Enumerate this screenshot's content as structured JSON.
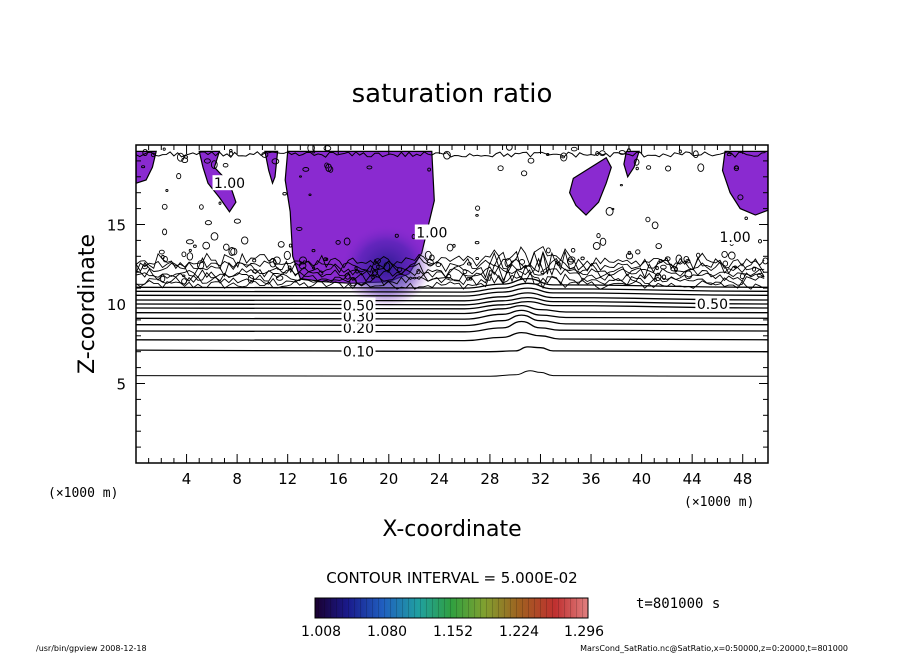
{
  "chart_data": {
    "type": "contour",
    "title": "saturation ratio",
    "xlabel": "X-coordinate",
    "ylabel": "Z-coordinate",
    "x_unit_label": "(×1000 m)",
    "y_unit_label": "(×1000 m)",
    "xlim": [
      0,
      50
    ],
    "ylim": [
      0,
      20
    ],
    "x_ticks": [
      4,
      8,
      12,
      16,
      20,
      24,
      28,
      32,
      36,
      40,
      44,
      48
    ],
    "y_ticks": [
      5,
      10,
      15
    ],
    "contour_interval_text": "CONTOUR INTERVAL = 5.000E-02",
    "time_text": "t=801000 s",
    "colorbar": {
      "labels": [
        "1.008",
        "1.080",
        "1.152",
        "1.224",
        "1.296"
      ],
      "colors": [
        "#1a0030",
        "#1a1a8c",
        "#2060c0",
        "#20a0a0",
        "#30a040",
        "#80a030",
        "#a06020",
        "#c03030",
        "#e08080"
      ]
    },
    "shaded_color": "#8a2ad0",
    "shaded_dark_color": "#3a1a9a",
    "contour_labels": [
      {
        "text": "0.10",
        "x": 17.6,
        "y": 7.0
      },
      {
        "text": "0.20",
        "x": 17.6,
        "y": 8.5
      },
      {
        "text": "0.30",
        "x": 17.6,
        "y": 9.2
      },
      {
        "text": "0.50",
        "x": 17.6,
        "y": 9.9
      },
      {
        "text": "0.50",
        "x": 45.6,
        "y": 10.0
      },
      {
        "text": "1.00",
        "x": 7.4,
        "y": 17.6
      },
      {
        "text": "1.00",
        "x": 23.4,
        "y": 14.5
      },
      {
        "text": "1.00",
        "x": 47.4,
        "y": 14.2
      }
    ],
    "contour_lines": [
      {
        "level": 0.05,
        "points": [
          [
            0,
            5.5
          ],
          [
            28,
            5.45
          ],
          [
            30,
            5.55
          ],
          [
            31.2,
            5.8
          ],
          [
            32,
            5.7
          ],
          [
            33,
            5.5
          ],
          [
            50,
            5.45
          ]
        ]
      },
      {
        "level": 0.1,
        "points": [
          [
            0,
            7.1
          ],
          [
            28,
            7.0
          ],
          [
            30,
            7.05
          ],
          [
            31,
            7.3
          ],
          [
            32,
            7.25
          ],
          [
            33,
            7.05
          ],
          [
            50,
            7.0
          ]
        ]
      },
      {
        "level": 0.15,
        "points": [
          [
            0,
            7.75
          ],
          [
            26,
            7.7
          ],
          [
            29,
            7.9
          ],
          [
            30.5,
            8.2
          ],
          [
            32,
            8.0
          ],
          [
            33.5,
            7.8
          ],
          [
            50,
            7.75
          ]
        ]
      },
      {
        "level": 0.2,
        "points": [
          [
            0,
            8.3
          ],
          [
            26,
            8.25
          ],
          [
            29,
            8.5
          ],
          [
            30.5,
            8.9
          ],
          [
            32,
            8.5
          ],
          [
            33.5,
            8.35
          ],
          [
            50,
            8.3
          ]
        ]
      },
      {
        "level": 0.25,
        "points": [
          [
            0,
            8.7
          ],
          [
            26,
            8.65
          ],
          [
            29,
            8.95
          ],
          [
            30.5,
            9.3
          ],
          [
            32,
            8.95
          ],
          [
            34,
            8.75
          ],
          [
            50,
            8.7
          ]
        ]
      },
      {
        "level": 0.3,
        "points": [
          [
            0,
            9.1
          ],
          [
            26,
            9.05
          ],
          [
            29,
            9.35
          ],
          [
            30.5,
            9.6
          ],
          [
            32,
            9.3
          ],
          [
            34,
            9.15
          ],
          [
            50,
            9.1
          ]
        ]
      },
      {
        "level": 0.35,
        "points": [
          [
            0,
            9.45
          ],
          [
            26,
            9.4
          ],
          [
            29,
            9.7
          ],
          [
            30.5,
            9.9
          ],
          [
            32,
            9.65
          ],
          [
            34,
            9.5
          ],
          [
            50,
            9.45
          ]
        ]
      },
      {
        "level": 0.4,
        "points": [
          [
            0,
            9.75
          ],
          [
            26,
            9.7
          ],
          [
            29,
            9.95
          ],
          [
            31,
            10.15
          ],
          [
            33,
            9.9
          ],
          [
            50,
            9.75
          ]
        ]
      },
      {
        "level": 0.45,
        "points": [
          [
            0,
            10.0
          ],
          [
            26,
            9.95
          ],
          [
            29,
            10.2
          ],
          [
            31,
            10.4
          ],
          [
            33,
            10.15
          ],
          [
            50,
            10.0
          ]
        ]
      },
      {
        "level": 0.5,
        "points": [
          [
            0,
            10.25
          ],
          [
            26,
            10.2
          ],
          [
            29,
            10.45
          ],
          [
            31,
            10.7
          ],
          [
            33,
            10.4
          ],
          [
            50,
            10.25
          ]
        ]
      },
      {
        "level": 0.6,
        "points": [
          [
            0,
            10.55
          ],
          [
            26,
            10.5
          ],
          [
            29,
            10.75
          ],
          [
            31,
            11.0
          ],
          [
            33,
            10.7
          ],
          [
            50,
            10.55
          ]
        ]
      },
      {
        "level": 0.7,
        "points": [
          [
            0,
            10.8
          ],
          [
            26,
            10.75
          ],
          [
            29,
            11.0
          ],
          [
            31,
            11.3
          ],
          [
            33,
            10.95
          ],
          [
            50,
            10.8
          ]
        ]
      },
      {
        "level": 0.8,
        "points": [
          [
            0,
            11.05
          ],
          [
            26,
            11.0
          ],
          [
            29,
            11.25
          ],
          [
            31,
            11.6
          ],
          [
            33,
            11.2
          ],
          [
            50,
            11.05
          ]
        ]
      }
    ],
    "shaded_regions": [
      {
        "points": [
          [
            12.0,
            19.6
          ],
          [
            23.4,
            19.6
          ],
          [
            23.6,
            16.5
          ],
          [
            22.6,
            13.2
          ],
          [
            21.6,
            11.9
          ],
          [
            20.0,
            11.4
          ],
          [
            17.0,
            11.3
          ],
          [
            14.8,
            11.4
          ],
          [
            13.0,
            11.6
          ],
          [
            12.4,
            13.0
          ],
          [
            12.2,
            15.8
          ],
          [
            11.8,
            17.8
          ]
        ]
      },
      {
        "points": [
          [
            0,
            19.6
          ],
          [
            1.6,
            19.6
          ],
          [
            1.3,
            18.6
          ],
          [
            0.8,
            17.8
          ],
          [
            0,
            17.6
          ]
        ]
      },
      {
        "points": [
          [
            5.0,
            19.6
          ],
          [
            6.6,
            19.6
          ],
          [
            6.2,
            18.6
          ],
          [
            7.4,
            17.6
          ],
          [
            7.9,
            16.4
          ],
          [
            7.4,
            15.8
          ],
          [
            6.6,
            16.7
          ],
          [
            5.7,
            17.6
          ],
          [
            5.3,
            18.6
          ]
        ]
      },
      {
        "points": [
          [
            10.2,
            19.6
          ],
          [
            11.2,
            19.6
          ],
          [
            11.0,
            18.0
          ],
          [
            10.8,
            17.6
          ],
          [
            10.5,
            18.4
          ]
        ]
      },
      {
        "points": [
          [
            34.6,
            17.9
          ],
          [
            36.0,
            18.6
          ],
          [
            37.2,
            19.2
          ],
          [
            37.6,
            18.6
          ],
          [
            37.2,
            17.6
          ],
          [
            36.6,
            16.4
          ],
          [
            35.6,
            15.6
          ],
          [
            34.8,
            16.2
          ],
          [
            34.3,
            17.0
          ]
        ]
      },
      {
        "points": [
          [
            38.8,
            19.6
          ],
          [
            39.8,
            19.6
          ],
          [
            39.4,
            18.6
          ],
          [
            38.9,
            18.0
          ],
          [
            38.6,
            18.8
          ]
        ]
      },
      {
        "points": [
          [
            46.6,
            19.6
          ],
          [
            50,
            19.6
          ],
          [
            50,
            15.9
          ],
          [
            49.0,
            15.6
          ],
          [
            47.8,
            16.0
          ],
          [
            47.0,
            17.0
          ],
          [
            46.4,
            18.4
          ]
        ]
      }
    ],
    "dark_core": {
      "cx": 19.8,
      "cy": 12.4,
      "rx": 3.6,
      "ry": 2.6
    }
  },
  "footer": {
    "left": "/usr/bin/gpview   2008-12-18",
    "right": "MarsCond_SatRatio.nc@SatRatio,x=0:50000,z=0:20000,t=801000"
  }
}
